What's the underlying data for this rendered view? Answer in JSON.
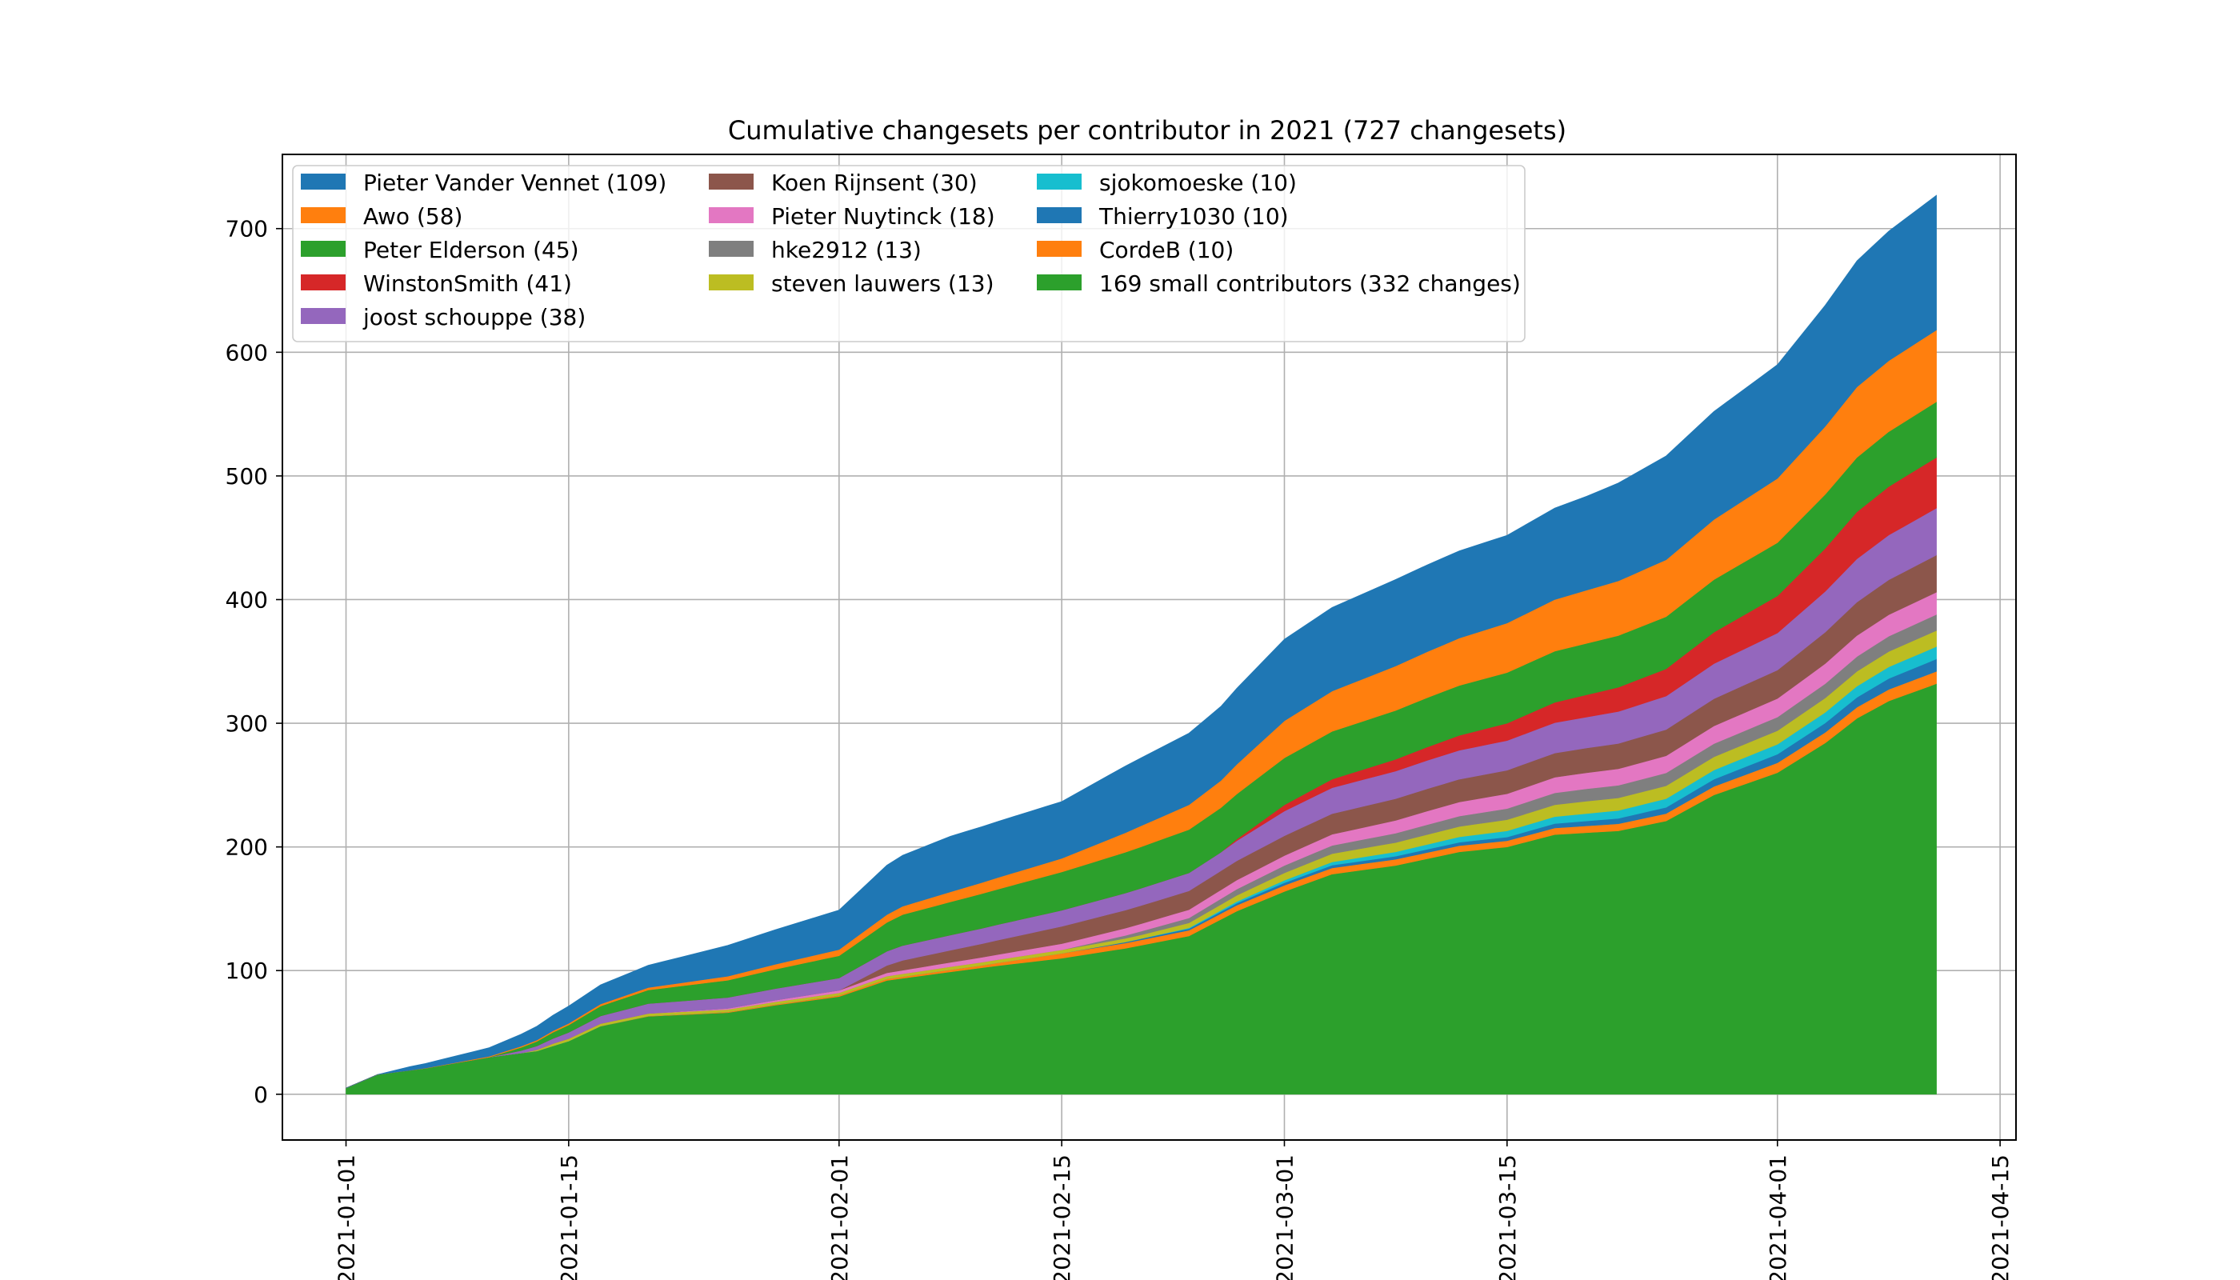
{
  "chart_data": {
    "type": "area",
    "stacked": true,
    "title": "Cumulative changesets per contributor in 2021 (727 changesets)",
    "xlabel": "",
    "ylabel": "",
    "x_start": "2021-01-01",
    "x_end": "2021-04-11",
    "xlim": [
      "2020-12-28",
      "2021-04-16"
    ],
    "ylim": [
      -37,
      760
    ],
    "x_ticks": [
      "2021-01-01",
      "2021-01-15",
      "2021-02-01",
      "2021-02-15",
      "2021-03-01",
      "2021-03-15",
      "2021-04-01",
      "2021-04-15"
    ],
    "y_ticks": [
      0,
      100,
      200,
      300,
      400,
      500,
      600,
      700
    ],
    "grid": true,
    "legend_position": "top-left",
    "series": [
      {
        "name": "169 small contributors (332 changes)",
        "color": "#2ca02c",
        "points": [
          [
            "2021-01-01",
            5
          ],
          [
            "2021-01-03",
            16
          ],
          [
            "2021-01-06",
            21
          ],
          [
            "2021-01-10",
            30
          ],
          [
            "2021-01-13",
            35
          ],
          [
            "2021-01-15",
            43
          ],
          [
            "2021-01-17",
            55
          ],
          [
            "2021-01-20",
            63
          ],
          [
            "2021-01-25",
            66
          ],
          [
            "2021-01-28",
            72
          ],
          [
            "2021-02-01",
            79
          ],
          [
            "2021-02-04",
            92
          ],
          [
            "2021-02-08",
            99
          ],
          [
            "2021-02-11",
            104
          ],
          [
            "2021-02-15",
            110
          ],
          [
            "2021-02-19",
            118
          ],
          [
            "2021-02-23",
            128
          ],
          [
            "2021-02-26",
            148
          ],
          [
            "2021-03-01",
            164
          ],
          [
            "2021-03-04",
            178
          ],
          [
            "2021-03-08",
            185
          ],
          [
            "2021-03-12",
            196
          ],
          [
            "2021-03-15",
            200
          ],
          [
            "2021-03-18",
            210
          ],
          [
            "2021-03-22",
            213
          ],
          [
            "2021-03-25",
            221
          ],
          [
            "2021-03-28",
            242
          ],
          [
            "2021-04-01",
            260
          ],
          [
            "2021-04-04",
            284
          ],
          [
            "2021-04-06",
            304
          ],
          [
            "2021-04-08",
            318
          ],
          [
            "2021-04-11",
            332
          ]
        ]
      },
      {
        "name": "CordeB (10)",
        "color": "#ff7f0e",
        "points": [
          [
            "2021-01-01",
            0
          ],
          [
            "2021-01-15",
            0
          ],
          [
            "2021-02-01",
            1
          ],
          [
            "2021-02-10",
            2
          ],
          [
            "2021-02-15",
            4
          ],
          [
            "2021-03-01",
            5
          ],
          [
            "2021-03-15",
            5
          ],
          [
            "2021-03-25",
            6
          ],
          [
            "2021-04-01",
            8
          ],
          [
            "2021-04-06",
            9
          ],
          [
            "2021-04-11",
            10
          ]
        ]
      },
      {
        "name": "Thierry1030 (10)",
        "color": "#1f77b4",
        "points": [
          [
            "2021-01-01",
            0
          ],
          [
            "2021-02-15",
            0
          ],
          [
            "2021-02-20",
            1
          ],
          [
            "2021-03-01",
            2
          ],
          [
            "2021-03-15",
            3
          ],
          [
            "2021-03-25",
            5
          ],
          [
            "2021-04-01",
            7
          ],
          [
            "2021-04-06",
            8
          ],
          [
            "2021-04-11",
            10
          ]
        ]
      },
      {
        "name": "sjokomoeske (10)",
        "color": "#17becf",
        "points": [
          [
            "2021-01-01",
            0
          ],
          [
            "2021-02-20",
            0
          ],
          [
            "2021-03-01",
            2
          ],
          [
            "2021-03-15",
            5
          ],
          [
            "2021-03-25",
            7
          ],
          [
            "2021-04-01",
            8
          ],
          [
            "2021-04-06",
            9
          ],
          [
            "2021-04-11",
            10
          ]
        ]
      },
      {
        "name": "steven lauwers (13)",
        "color": "#bcbd22",
        "points": [
          [
            "2021-01-01",
            0
          ],
          [
            "2021-01-12",
            0
          ],
          [
            "2021-01-14",
            2
          ],
          [
            "2021-02-01",
            2
          ],
          [
            "2021-02-20",
            3
          ],
          [
            "2021-03-01",
            6
          ],
          [
            "2021-03-10",
            8
          ],
          [
            "2021-03-20",
            10
          ],
          [
            "2021-04-01",
            11
          ],
          [
            "2021-04-06",
            12
          ],
          [
            "2021-04-11",
            13
          ]
        ]
      },
      {
        "name": "hke2912 (13)",
        "color": "#7f7f7f",
        "points": [
          [
            "2021-01-01",
            0
          ],
          [
            "2021-02-15",
            0
          ],
          [
            "2021-02-20",
            3
          ],
          [
            "2021-03-01",
            6
          ],
          [
            "2021-03-10",
            8
          ],
          [
            "2021-03-20",
            10
          ],
          [
            "2021-04-01",
            11
          ],
          [
            "2021-04-06",
            12
          ],
          [
            "2021-04-11",
            13
          ]
        ]
      },
      {
        "name": "Pieter Nuytinck (18)",
        "color": "#e377c2",
        "points": [
          [
            "2021-01-01",
            0
          ],
          [
            "2021-01-20",
            0
          ],
          [
            "2021-02-01",
            2
          ],
          [
            "2021-02-15",
            5
          ],
          [
            "2021-03-01",
            8
          ],
          [
            "2021-03-10",
            11
          ],
          [
            "2021-03-20",
            13
          ],
          [
            "2021-04-01",
            15
          ],
          [
            "2021-04-06",
            17
          ],
          [
            "2021-04-11",
            18
          ]
        ]
      },
      {
        "name": "Koen Rijnsent (30)",
        "color": "#8c564b",
        "points": [
          [
            "2021-01-01",
            0
          ],
          [
            "2021-02-01",
            0
          ],
          [
            "2021-02-05",
            8
          ],
          [
            "2021-02-15",
            14
          ],
          [
            "2021-03-01",
            16
          ],
          [
            "2021-03-10",
            18
          ],
          [
            "2021-03-20",
            20
          ],
          [
            "2021-04-01",
            23
          ],
          [
            "2021-04-06",
            27
          ],
          [
            "2021-04-11",
            30
          ]
        ]
      },
      {
        "name": "joost schouppe (38)",
        "color": "#9467bd",
        "points": [
          [
            "2021-01-01",
            0
          ],
          [
            "2021-01-10",
            0
          ],
          [
            "2021-01-15",
            5
          ],
          [
            "2021-01-20",
            8
          ],
          [
            "2021-02-01",
            10
          ],
          [
            "2021-02-05",
            12
          ],
          [
            "2021-02-15",
            13
          ],
          [
            "2021-02-25",
            15
          ],
          [
            "2021-03-01",
            20
          ],
          [
            "2021-03-10",
            23
          ],
          [
            "2021-03-20",
            25
          ],
          [
            "2021-04-01",
            30
          ],
          [
            "2021-04-06",
            35
          ],
          [
            "2021-04-11",
            38
          ]
        ]
      },
      {
        "name": "WinstonSmith (41)",
        "color": "#d62728",
        "points": [
          [
            "2021-01-01",
            0
          ],
          [
            "2021-02-25",
            0
          ],
          [
            "2021-03-01",
            5
          ],
          [
            "2021-03-15",
            14
          ],
          [
            "2021-03-25",
            22
          ],
          [
            "2021-04-01",
            30
          ],
          [
            "2021-04-06",
            38
          ],
          [
            "2021-04-11",
            41
          ]
        ]
      },
      {
        "name": "Peter Elderson (45)",
        "color": "#2ca02c",
        "points": [
          [
            "2021-01-01",
            0
          ],
          [
            "2021-01-10",
            0
          ],
          [
            "2021-01-14",
            5
          ],
          [
            "2021-01-20",
            11
          ],
          [
            "2021-02-01",
            18
          ],
          [
            "2021-02-05",
            25
          ],
          [
            "2021-02-15",
            31
          ],
          [
            "2021-03-01",
            38
          ],
          [
            "2021-03-15",
            41
          ],
          [
            "2021-04-01",
            43
          ],
          [
            "2021-04-06",
            44
          ],
          [
            "2021-04-11",
            45
          ]
        ]
      },
      {
        "name": "Awo (58)",
        "color": "#ff7f0e",
        "points": [
          [
            "2021-01-01",
            0
          ],
          [
            "2021-01-05",
            0
          ],
          [
            "2021-01-20",
            2
          ],
          [
            "2021-02-01",
            5
          ],
          [
            "2021-02-10",
            9
          ],
          [
            "2021-02-15",
            11
          ],
          [
            "2021-02-20",
            17
          ],
          [
            "2021-02-25",
            22
          ],
          [
            "2021-03-01",
            30
          ],
          [
            "2021-03-08",
            36
          ],
          [
            "2021-03-15",
            40
          ],
          [
            "2021-03-25",
            46
          ],
          [
            "2021-04-01",
            52
          ],
          [
            "2021-04-06",
            57
          ],
          [
            "2021-04-11",
            58
          ]
        ]
      },
      {
        "name": "Pieter Vander Vennet (109)",
        "color": "#1f77b4",
        "points": [
          [
            "2021-01-01",
            0
          ],
          [
            "2021-01-03",
            0
          ],
          [
            "2021-01-05",
            3
          ],
          [
            "2021-01-10",
            7
          ],
          [
            "2021-01-15",
            14
          ],
          [
            "2021-01-20",
            18
          ],
          [
            "2021-01-25",
            25
          ],
          [
            "2021-02-01",
            32
          ],
          [
            "2021-02-04",
            40
          ],
          [
            "2021-02-08",
            45
          ],
          [
            "2021-02-15",
            46
          ],
          [
            "2021-02-19",
            54
          ],
          [
            "2021-02-25",
            60
          ],
          [
            "2021-03-01",
            66
          ],
          [
            "2021-03-08",
            70
          ],
          [
            "2021-03-15",
            71
          ],
          [
            "2021-03-20",
            76
          ],
          [
            "2021-03-25",
            84
          ],
          [
            "2021-04-01",
            92
          ],
          [
            "2021-04-06",
            102
          ],
          [
            "2021-04-11",
            109
          ]
        ]
      }
    ]
  }
}
